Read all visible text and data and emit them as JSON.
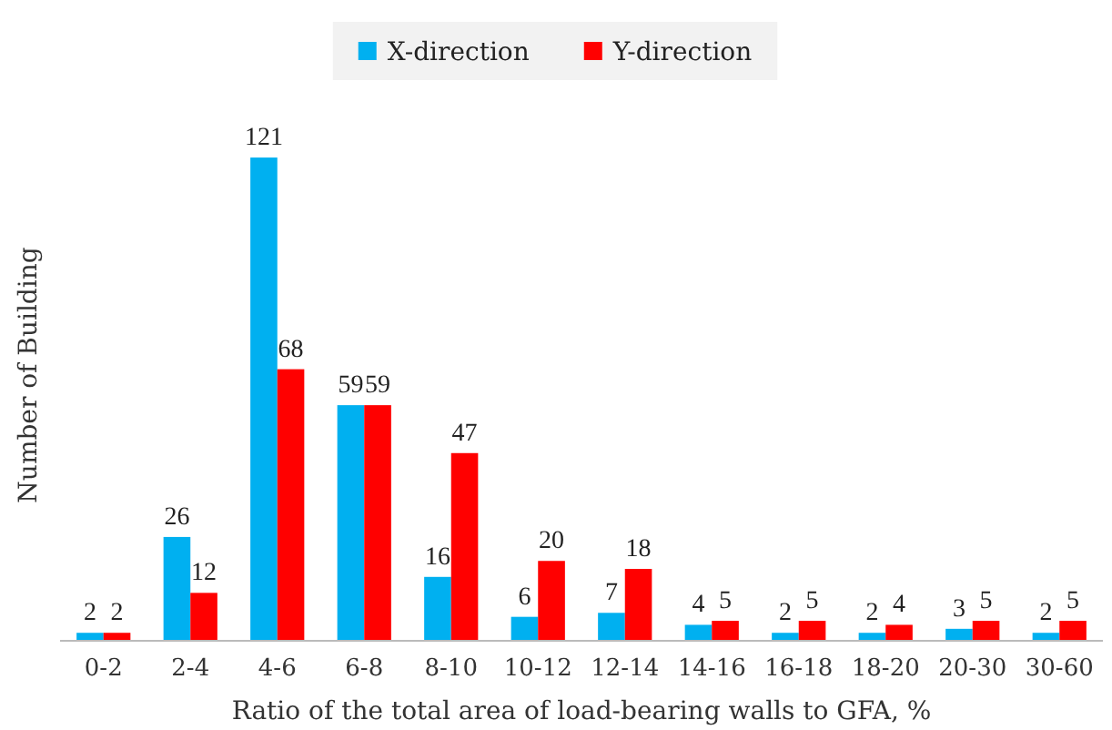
{
  "chart_data": {
    "type": "bar",
    "xlabel": "Ratio of the total area of load-bearing walls to GFA, %",
    "ylabel": "Number of Building",
    "categories": [
      "0-2",
      "2-4",
      "4-6",
      "6-8",
      "8-10",
      "10-12",
      "12-14",
      "14-16",
      "16-18",
      "18-20",
      "20-30",
      "30-60"
    ],
    "series": [
      {
        "name": "X-direction",
        "color": "#00b0f0",
        "values": [
          2,
          26,
          121,
          59,
          16,
          6,
          7,
          4,
          2,
          2,
          3,
          2
        ]
      },
      {
        "name": "Y-direction",
        "color": "#ff0000",
        "values": [
          2,
          12,
          68,
          59,
          47,
          20,
          18,
          5,
          5,
          4,
          5,
          5
        ]
      }
    ],
    "data_labels": true,
    "legend": "top"
  }
}
